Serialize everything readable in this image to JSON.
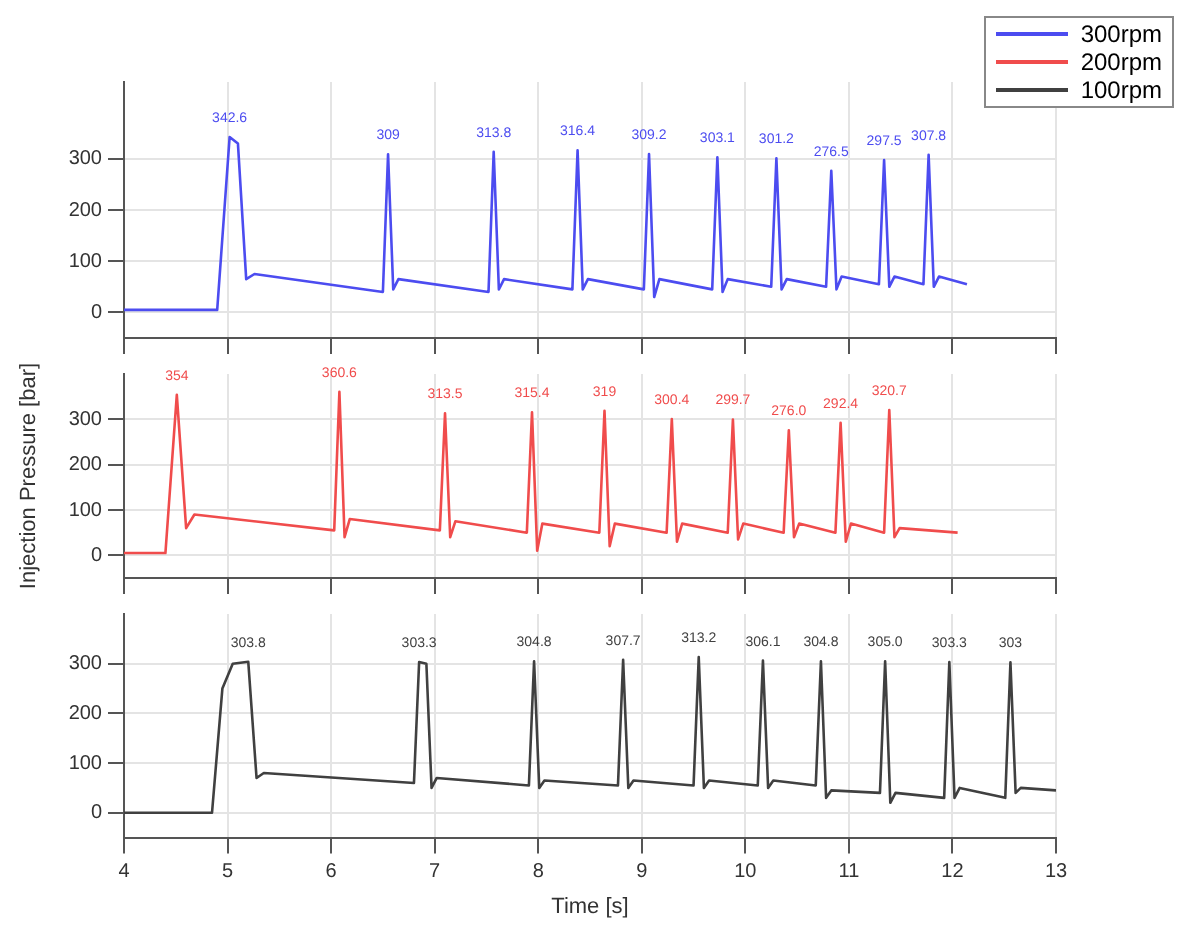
{
  "chart_data": [
    {
      "type": "line",
      "xlim": [
        4,
        13
      ],
      "xticks": [
        4,
        5,
        6,
        7,
        8,
        9,
        10,
        11,
        12,
        13
      ],
      "ylim": [
        -50,
        450
      ],
      "yticks": [
        0,
        100,
        200,
        300
      ],
      "grid": true,
      "tick_labels": "y",
      "legend": "top right",
      "series": [
        {
          "name": "300rpm",
          "color": "#4c4cf0",
          "x": [
            4,
            4.9,
            5.02,
            5.1,
            5.18,
            5.26,
            6.5,
            6.55,
            6.6,
            6.65,
            7.52,
            7.57,
            7.62,
            7.67,
            8.33,
            8.38,
            8.43,
            8.48,
            9.02,
            9.07,
            9.12,
            9.17,
            9.68,
            9.73,
            9.78,
            9.83,
            10.25,
            10.3,
            10.35,
            10.4,
            10.78,
            10.83,
            10.88,
            10.93,
            11.29,
            11.34,
            11.39,
            11.44,
            11.72,
            11.77,
            11.82,
            11.87,
            12.14
          ],
          "values": [
            5,
            5,
            342.6,
            330,
            65,
            75,
            40,
            309,
            45,
            65,
            40,
            313.8,
            45,
            65,
            45,
            316.4,
            45,
            65,
            45,
            309.2,
            30,
            65,
            45,
            303.1,
            40,
            65,
            50,
            301.2,
            45,
            65,
            50,
            276.5,
            45,
            70,
            55,
            297.5,
            50,
            70,
            55,
            307.8,
            50,
            70,
            55
          ]
        }
      ],
      "annotations": [
        {
          "text": "342.6",
          "x": 5.02,
          "y": 342.6
        },
        {
          "text": "309",
          "x": 6.55,
          "y": 309
        },
        {
          "text": "313.8",
          "x": 7.57,
          "y": 313.8
        },
        {
          "text": "316.4",
          "x": 8.38,
          "y": 316.4
        },
        {
          "text": "309.2",
          "x": 9.07,
          "y": 309.2
        },
        {
          "text": "303.1",
          "x": 9.73,
          "y": 303.1
        },
        {
          "text": "301.2",
          "x": 10.3,
          "y": 301.2
        },
        {
          "text": "276.5",
          "x": 10.83,
          "y": 276.5
        },
        {
          "text": "297.5",
          "x": 11.34,
          "y": 297.5
        },
        {
          "text": "307.8",
          "x": 11.77,
          "y": 307.8
        }
      ]
    },
    {
      "type": "line",
      "xlim": [
        4,
        13
      ],
      "xticks": [
        4,
        5,
        6,
        7,
        8,
        9,
        10,
        11,
        12,
        13
      ],
      "ylim": [
        -50,
        400
      ],
      "yticks": [
        0,
        100,
        200,
        300
      ],
      "grid": true,
      "tick_labels": "y",
      "ylabel": "Injection Pressure [bar]",
      "series": [
        {
          "name": "200rpm",
          "color": "#f04c4c",
          "x": [
            4,
            4.4,
            4.51,
            4.6,
            4.68,
            6.03,
            6.08,
            6.13,
            6.18,
            7.05,
            7.1,
            7.15,
            7.2,
            7.89,
            7.94,
            7.99,
            8.04,
            8.59,
            8.64,
            8.69,
            8.74,
            9.24,
            9.29,
            9.34,
            9.39,
            9.83,
            9.88,
            9.93,
            9.98,
            10.37,
            10.42,
            10.47,
            10.52,
            10.87,
            10.92,
            10.97,
            11.02,
            11.34,
            11.39,
            11.44,
            11.49,
            12.05
          ],
          "values": [
            5,
            5,
            354,
            60,
            90,
            55,
            360.6,
            40,
            80,
            55,
            313.5,
            40,
            75,
            50,
            315.4,
            10,
            70,
            50,
            319,
            20,
            70,
            50,
            300.4,
            30,
            70,
            50,
            299.7,
            35,
            70,
            50,
            276,
            40,
            70,
            50,
            292.4,
            30,
            70,
            50,
            320.7,
            40,
            60,
            50
          ]
        }
      ],
      "annotations": [
        {
          "text": "354",
          "x": 4.51,
          "y": 354
        },
        {
          "text": "360.6",
          "x": 6.08,
          "y": 360.6
        },
        {
          "text": "313.5",
          "x": 7.1,
          "y": 313.5
        },
        {
          "text": "315.4",
          "x": 7.94,
          "y": 315.4
        },
        {
          "text": "319",
          "x": 8.64,
          "y": 319
        },
        {
          "text": "300.4",
          "x": 9.29,
          "y": 300.4
        },
        {
          "text": "299.7",
          "x": 9.88,
          "y": 299.7
        },
        {
          "text": "276.0",
          "x": 10.42,
          "y": 276
        },
        {
          "text": "292.4",
          "x": 10.92,
          "y": 292.4
        },
        {
          "text": "320.7",
          "x": 11.39,
          "y": 320.7
        }
      ]
    },
    {
      "type": "line",
      "xlim": [
        4,
        13
      ],
      "xticks": [
        4,
        5,
        6,
        7,
        8,
        9,
        10,
        11,
        12,
        13
      ],
      "ylim": [
        -50,
        400
      ],
      "yticks": [
        0,
        100,
        200,
        300
      ],
      "grid": true,
      "xlabel": "Time [s]",
      "series": [
        {
          "name": "100rpm",
          "color": "#404040",
          "x": [
            4,
            4.85,
            4.95,
            5.05,
            5.2,
            5.28,
            5.35,
            6.8,
            6.85,
            6.92,
            6.97,
            7.02,
            7.91,
            7.96,
            8.01,
            8.06,
            8.77,
            8.82,
            8.87,
            8.92,
            9.5,
            9.55,
            9.6,
            9.65,
            10.12,
            10.17,
            10.22,
            10.27,
            10.68,
            10.73,
            10.78,
            10.83,
            11.3,
            11.35,
            11.4,
            11.45,
            11.92,
            11.97,
            12.02,
            12.07,
            12.51,
            12.56,
            12.61,
            12.66,
            13
          ],
          "values": [
            0,
            0,
            250,
            300,
            303.8,
            70,
            80,
            60,
            303.3,
            300,
            50,
            70,
            55,
            304.8,
            50,
            65,
            55,
            307.7,
            50,
            65,
            55,
            313.2,
            50,
            65,
            55,
            306.1,
            50,
            65,
            55,
            304.8,
            30,
            45,
            40,
            305,
            20,
            40,
            30,
            303.3,
            30,
            50,
            30,
            303,
            40,
            50,
            45
          ]
        }
      ],
      "annotations": [
        {
          "text": "303.8",
          "x": 5.2,
          "y": 303.8
        },
        {
          "text": "303.3",
          "x": 6.85,
          "y": 303.3
        },
        {
          "text": "304.8",
          "x": 7.96,
          "y": 304.8
        },
        {
          "text": "307.7",
          "x": 8.82,
          "y": 307.7
        },
        {
          "text": "313.2",
          "x": 9.55,
          "y": 313.2
        },
        {
          "text": "306.1",
          "x": 10.17,
          "y": 306.1
        },
        {
          "text": "304.8",
          "x": 10.73,
          "y": 304.8
        },
        {
          "text": "305.0",
          "x": 11.35,
          "y": 305
        },
        {
          "text": "303.3",
          "x": 11.97,
          "y": 303.3
        },
        {
          "text": "303",
          "x": 12.56,
          "y": 303
        }
      ]
    }
  ]
}
